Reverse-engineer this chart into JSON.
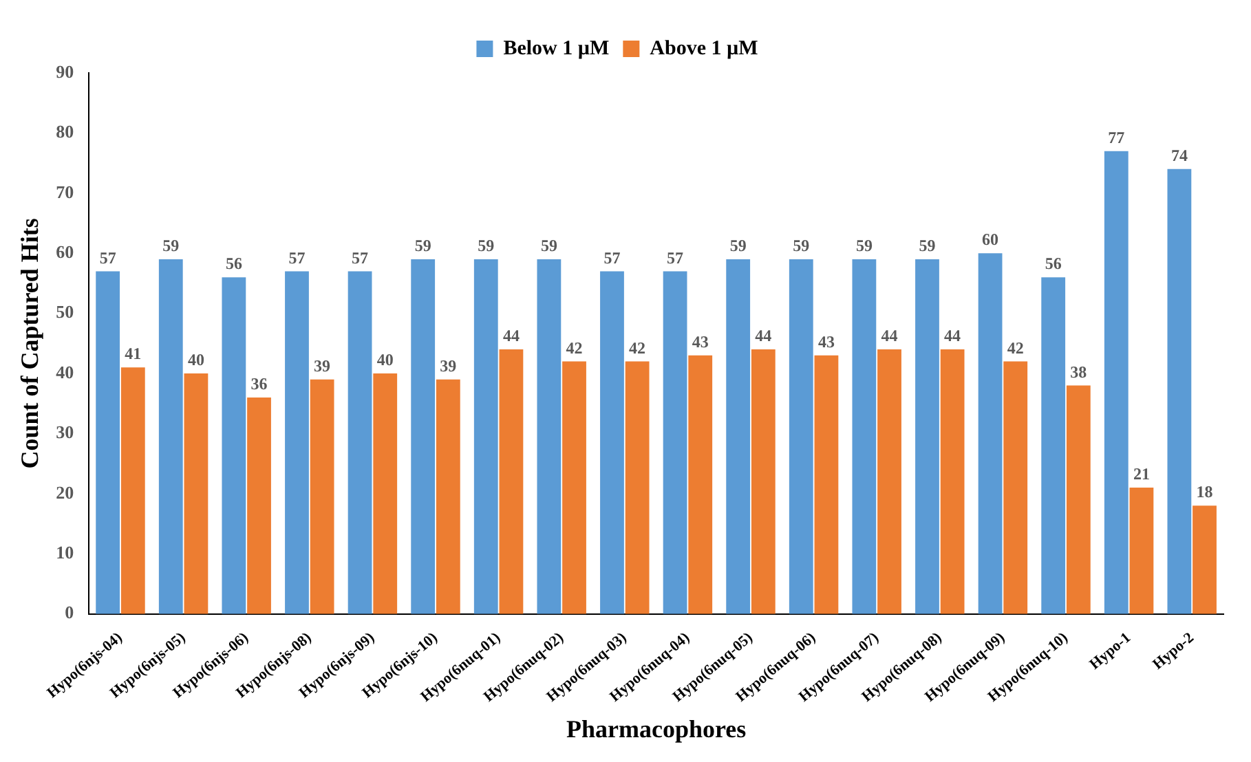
{
  "chart_data": {
    "type": "bar",
    "xlabel": "Pharmacophores",
    "ylabel": "Count of Captured Hits",
    "categories": [
      "Hypo(6njs-04)",
      "Hypo(6njs-05)",
      "Hypo(6njs-06)",
      "Hypo(6njs-08)",
      "Hypo(6njs-09)",
      "Hypo(6njs-10)",
      "Hypo(6nuq-01)",
      "Hypo(6nuq-02)",
      "Hypo(6nuq-03)",
      "Hypo(6nuq-04)",
      "Hypo(6nuq-05)",
      "Hypo(6nuq-06)",
      "Hypo(6nuq-07)",
      "Hypo(6nuq-08)",
      "Hypo(6nuq-09)",
      "Hypo(6nuq-10)",
      "Hypo-1",
      "Hypo-2"
    ],
    "series": [
      {
        "name": "Below 1 µM",
        "color": "#5b9bd5",
        "values": [
          57,
          59,
          56,
          57,
          57,
          59,
          59,
          59,
          57,
          57,
          59,
          59,
          59,
          59,
          60,
          56,
          77,
          74
        ]
      },
      {
        "name": "Above 1 µM",
        "color": "#ed7d31",
        "values": [
          41,
          40,
          36,
          39,
          40,
          39,
          44,
          42,
          42,
          43,
          44,
          43,
          44,
          44,
          42,
          38,
          21,
          18
        ]
      }
    ],
    "ylim": [
      0,
      90
    ],
    "yticks": [
      0,
      10,
      20,
      30,
      40,
      50,
      60,
      70,
      80,
      90
    ],
    "grid": false,
    "legend": "top",
    "data_labels": true
  }
}
